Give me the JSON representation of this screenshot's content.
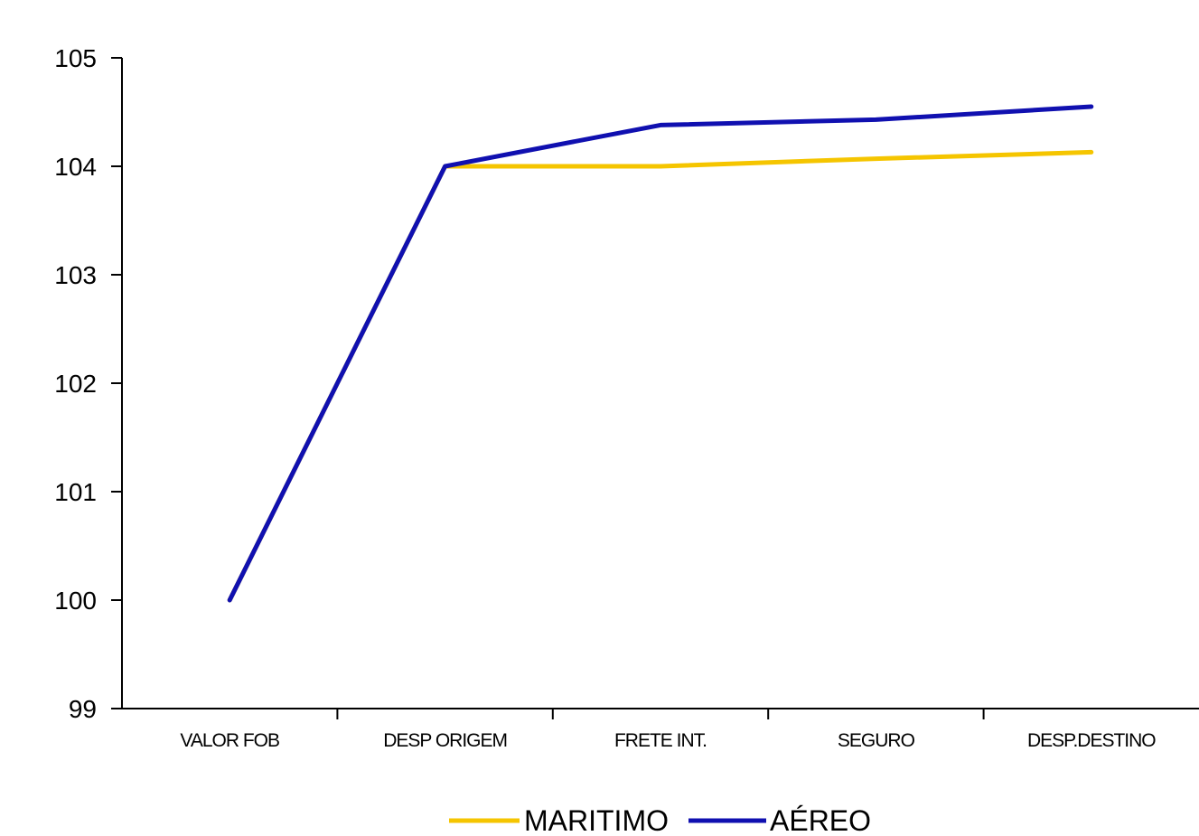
{
  "chart_data": {
    "type": "line",
    "categories": [
      "VALOR FOB",
      "DESP ORIGEM",
      "FRETE INT.",
      "SEGURO",
      "DESP.DESTINO"
    ],
    "series": [
      {
        "name": "MARITIMO",
        "color": "#F5C500",
        "values": [
          100,
          104.0,
          104.0,
          104.07,
          104.13
        ]
      },
      {
        "name": "AÉREO",
        "color": "#1010B0",
        "values": [
          100,
          104.0,
          104.38,
          104.43,
          104.55
        ]
      }
    ],
    "ylim": [
      99,
      105
    ],
    "yticks": [
      99,
      100,
      101,
      102,
      103,
      104,
      105
    ],
    "title": "",
    "xlabel": "",
    "ylabel": "",
    "grid": false,
    "legend_position": "bottom"
  }
}
